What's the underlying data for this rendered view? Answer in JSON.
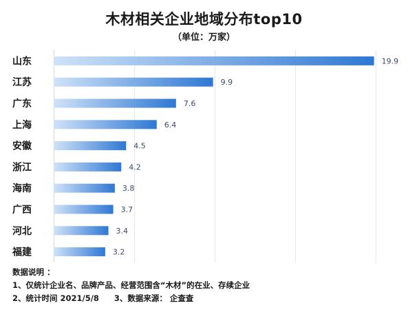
{
  "chart_data": {
    "type": "bar",
    "orientation": "horizontal",
    "title": "木材相关企业地域分布top10",
    "subtitle": "（单位：万家）",
    "categories": [
      "山东",
      "江苏",
      "广东",
      "上海",
      "安徽",
      "浙江",
      "海南",
      "广西",
      "河北",
      "福建"
    ],
    "values": [
      19.9,
      9.9,
      7.6,
      6.4,
      4.5,
      4.2,
      3.8,
      3.7,
      3.4,
      3.2
    ],
    "xlim": [
      0,
      20
    ],
    "grid": true,
    "legend": "none",
    "bar_gradient": [
      "#cfe2f8",
      "#2f78d4"
    ],
    "value_label_color": "#3b4a6b"
  },
  "notes": {
    "heading": "数据说明 ：",
    "line1": "1、仅统计企业名、品牌产品、经营范围含“木材”的在业、存续企业",
    "line2_a": "2、统计时间  2021/5/8",
    "line2_b": "3、数据来源： 企查查"
  }
}
